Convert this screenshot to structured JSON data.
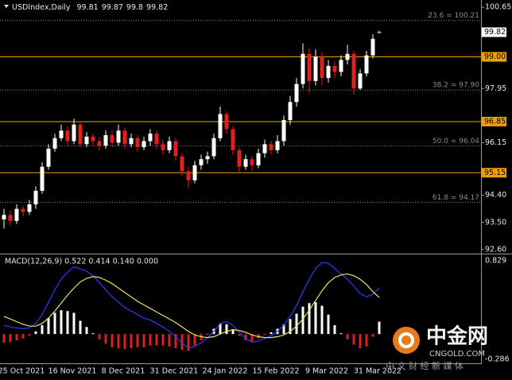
{
  "chart_data": [
    {
      "type": "candlestick",
      "title": "USDIndex,Daily",
      "x": [
        null,
        null,
        null,
        "25 Oct 2021",
        null,
        null,
        null,
        null,
        null,
        null,
        null,
        "16 Nov 2021",
        null,
        null,
        null,
        null,
        null,
        null,
        null,
        "8 Dec 2021",
        null,
        null,
        null,
        null,
        null,
        null,
        null,
        "31 Dec 2021",
        null,
        null,
        null,
        null,
        null,
        null,
        null,
        "24 Jan 2022",
        null,
        null,
        null,
        null,
        null,
        null,
        null,
        "15 Feb 2022",
        null,
        null,
        null,
        null,
        null,
        null,
        null,
        "9 Mar 2022",
        null,
        null,
        null,
        null,
        null,
        null,
        null,
        "31 Mar 2022"
      ],
      "open": [
        93.6,
        93.75,
        93.55,
        93.95,
        93.85,
        94.1,
        94.55,
        95.35,
        95.95,
        96.3,
        96.55,
        96.2,
        96.75,
        96.1,
        96.35,
        96.2,
        96.05,
        96.4,
        96.15,
        96.55,
        96.1,
        96.3,
        96.0,
        96.2,
        96.45,
        96.1,
        95.9,
        96.2,
        95.7,
        95.2,
        94.9,
        95.4,
        95.6,
        95.7,
        96.3,
        97.1,
        96.6,
        95.9,
        95.35,
        95.6,
        95.4,
        95.8,
        96.1,
        95.9,
        96.2,
        96.9,
        97.5,
        98.1,
        99.1,
        98.2,
        99.0,
        98.3,
        98.7,
        98.5,
        98.9,
        99.1,
        97.95,
        98.45,
        99.05,
        99.81
      ],
      "high": [
        93.95,
        93.9,
        94.1,
        94.05,
        94.25,
        94.7,
        95.5,
        96.1,
        96.45,
        96.75,
        96.7,
        96.95,
        96.85,
        96.5,
        96.45,
        96.35,
        96.55,
        96.55,
        96.75,
        96.65,
        96.45,
        96.4,
        96.35,
        96.6,
        96.55,
        96.25,
        96.35,
        96.3,
        95.8,
        95.35,
        95.55,
        95.75,
        95.85,
        96.45,
        97.35,
        97.2,
        96.7,
        96.0,
        95.75,
        95.7,
        95.95,
        96.25,
        96.2,
        96.4,
        97.05,
        97.7,
        98.3,
        99.45,
        99.3,
        99.25,
        99.15,
        98.9,
        98.85,
        99.05,
        99.4,
        99.2,
        98.6,
        99.2,
        99.75,
        99.87
      ],
      "low": [
        93.3,
        93.4,
        93.45,
        93.7,
        93.75,
        93.95,
        94.45,
        95.25,
        95.85,
        96.2,
        96.05,
        96.1,
        96.0,
        96.0,
        96.05,
        95.9,
        95.95,
        96.0,
        96.05,
        95.95,
        96.0,
        95.85,
        95.9,
        96.05,
        95.95,
        95.75,
        95.8,
        95.55,
        95.05,
        94.65,
        94.8,
        95.25,
        95.45,
        95.6,
        96.2,
        96.45,
        95.75,
        95.15,
        95.25,
        95.2,
        95.3,
        95.65,
        95.75,
        95.8,
        96.05,
        96.75,
        97.35,
        97.95,
        97.8,
        98.05,
        98.05,
        98.15,
        98.3,
        98.35,
        98.75,
        97.75,
        97.9,
        98.35,
        98.95,
        99.8
      ],
      "close": [
        93.75,
        93.55,
        93.95,
        93.85,
        94.1,
        94.55,
        95.35,
        95.95,
        96.3,
        96.55,
        96.2,
        96.75,
        96.1,
        96.35,
        96.2,
        96.05,
        96.4,
        96.15,
        96.55,
        96.1,
        96.3,
        96.0,
        96.2,
        96.45,
        96.1,
        95.9,
        96.2,
        95.7,
        95.2,
        94.9,
        95.4,
        95.6,
        95.7,
        96.3,
        97.1,
        96.6,
        95.9,
        95.35,
        95.6,
        95.4,
        95.8,
        96.1,
        95.9,
        96.2,
        96.9,
        97.5,
        98.1,
        99.1,
        98.2,
        99.0,
        98.3,
        98.7,
        98.5,
        98.9,
        99.1,
        97.95,
        98.45,
        99.05,
        99.6,
        99.82
      ],
      "up_color": "#ffffff",
      "down_color": "#e0201a",
      "ylim": [
        92.49,
        100.89
      ],
      "yticks": [
        100.65,
        97.95,
        96.15,
        {
          "value": 94.4,
          "label": "94.40"
        },
        {
          "value": 93.5,
          "label": "93.50"
        },
        {
          "value": 92.6,
          "label": "92.60"
        }
      ],
      "levels": [
        {
          "value": 99,
          "label": "99.00"
        },
        {
          "value": 96.85,
          "label": "96.85"
        },
        {
          "value": 95.15,
          "label": "95.15"
        }
      ],
      "level_color": "#f0a000",
      "fib_levels": [
        {
          "value": 100.21,
          "label": "23.6 = 100.21"
        },
        {
          "value": 97.9,
          "label": "38.2 = 97.90"
        },
        {
          "value": 96.04,
          "label": "50.0 = 96.04"
        },
        {
          "value": 94.17,
          "label": "61.8 = 94.17"
        }
      ],
      "fib_color": "#8a8a8a"
    },
    {
      "type": "macd",
      "title": "MACD(12,26,9) 0.522 0.414 0.140 0.000",
      "ylim": [
        -0.286,
        0.829
      ],
      "yticks": [
        0.829,
        -0.286
      ],
      "series": [
        {
          "style": "histogram",
          "color": "#ffffff",
          "negative_color": "#e0201a",
          "values": [
            -0.1,
            -0.09,
            -0.07,
            -0.05,
            -0.02,
            0.03,
            0.1,
            0.18,
            0.24,
            0.27,
            0.26,
            0.24,
            0.15,
            0.08,
            0.01,
            -0.06,
            -0.11,
            -0.15,
            -0.16,
            -0.17,
            -0.16,
            -0.15,
            -0.15,
            -0.13,
            -0.13,
            -0.13,
            -0.14,
            -0.16,
            -0.18,
            -0.19,
            -0.13,
            -0.07,
            0.0,
            0.06,
            0.12,
            0.11,
            0.05,
            -0.02,
            -0.07,
            -0.08,
            -0.05,
            -0.01,
            0.02,
            0.06,
            0.11,
            0.17,
            0.23,
            0.31,
            0.35,
            0.36,
            0.32,
            0.22,
            0.1,
            0.01,
            -0.06,
            -0.12,
            -0.16,
            -0.14,
            -0.03,
            0.14
          ]
        },
        {
          "style": "line",
          "color": "#2a3cff",
          "values": [
            0.1,
            0.08,
            0.07,
            0.06,
            0.07,
            0.12,
            0.22,
            0.36,
            0.5,
            0.62,
            0.7,
            0.76,
            0.74,
            0.71,
            0.66,
            0.58,
            0.5,
            0.42,
            0.36,
            0.3,
            0.26,
            0.22,
            0.18,
            0.16,
            0.12,
            0.08,
            0.03,
            -0.03,
            -0.1,
            -0.16,
            -0.14,
            -0.1,
            -0.04,
            0.03,
            0.12,
            0.14,
            0.1,
            0.02,
            -0.05,
            -0.09,
            -0.08,
            -0.05,
            -0.02,
            0.03,
            0.1,
            0.2,
            0.32,
            0.48,
            0.62,
            0.74,
            0.81,
            0.8,
            0.74,
            0.68,
            0.62,
            0.54,
            0.46,
            0.42,
            0.45,
            0.522
          ]
        },
        {
          "style": "line",
          "color": "#f0e060",
          "values": [
            0.2,
            0.17,
            0.14,
            0.11,
            0.09,
            0.09,
            0.12,
            0.18,
            0.26,
            0.35,
            0.44,
            0.52,
            0.59,
            0.63,
            0.65,
            0.64,
            0.61,
            0.57,
            0.52,
            0.47,
            0.42,
            0.37,
            0.33,
            0.29,
            0.25,
            0.21,
            0.17,
            0.13,
            0.08,
            0.03,
            -0.01,
            -0.03,
            -0.04,
            -0.03,
            0.0,
            0.03,
            0.05,
            0.04,
            0.02,
            -0.01,
            -0.03,
            -0.04,
            -0.04,
            -0.03,
            -0.01,
            0.03,
            0.09,
            0.17,
            0.27,
            0.38,
            0.49,
            0.58,
            0.64,
            0.67,
            0.68,
            0.66,
            0.62,
            0.56,
            0.48,
            0.414
          ]
        }
      ]
    }
  ],
  "watermark": {
    "logo": "中金网",
    "site": "CNGOLD.COM",
    "slogan": "中 文 财 经 新 媒 体"
  }
}
